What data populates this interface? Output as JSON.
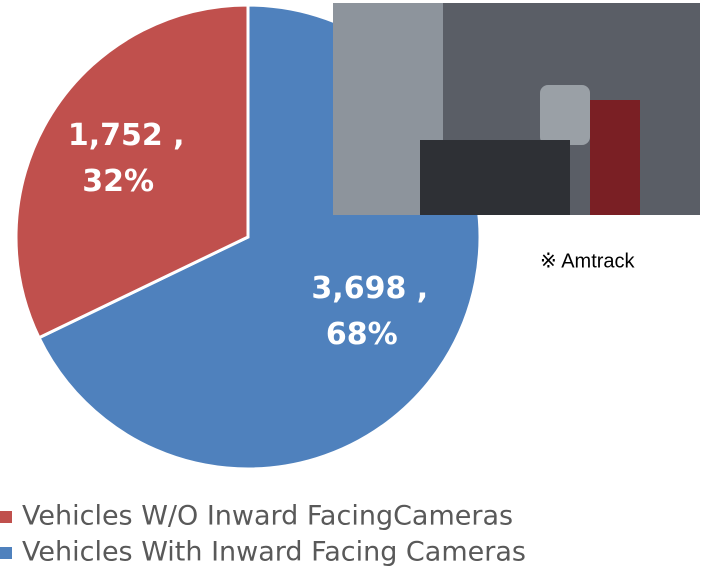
{
  "chart_data": {
    "type": "pie",
    "categories": [
      "Vehicles W/O Inward FacingCameras",
      "Vehicles With Inward Facing Cameras"
    ],
    "values": [
      1752,
      3698
    ],
    "value_labels": [
      "1,752 ,",
      "3,698 ,"
    ],
    "percents": [
      32,
      68
    ],
    "percent_labels": [
      "32%",
      "68%"
    ],
    "colors": [
      "#c0504d",
      "#4f81bd"
    ]
  },
  "caption": "※ Amtrack"
}
